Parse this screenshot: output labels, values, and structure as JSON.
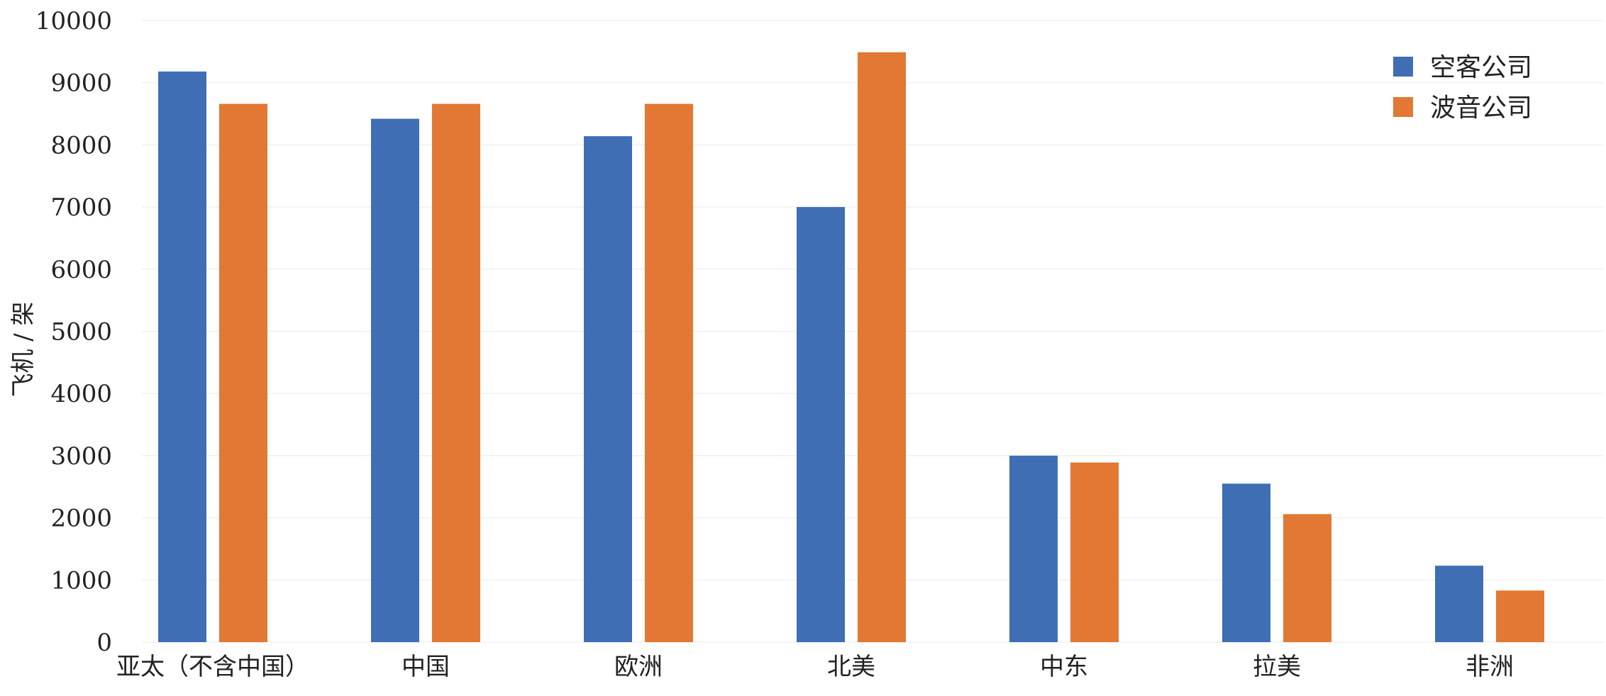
{
  "chart_data": {
    "type": "bar",
    "ylabel": "飞机 / 架",
    "xlabel": "",
    "title": "",
    "ylim": [
      0,
      10000
    ],
    "yticks": [
      0,
      1000,
      2000,
      3000,
      4000,
      5000,
      6000,
      7000,
      8000,
      9000,
      10000
    ],
    "grid": true,
    "legend_position": "top-right",
    "categories": [
      "亚太（不含中国）",
      "中国",
      "欧洲",
      "北美",
      "中东",
      "拉美",
      "非洲"
    ],
    "series": [
      {
        "name": "空客公司",
        "color": "#3f6eb5",
        "values": [
          9180,
          8420,
          8140,
          7000,
          3000,
          2550,
          1230
        ]
      },
      {
        "name": "波音公司",
        "color": "#e27833",
        "values": [
          8660,
          8660,
          8660,
          9490,
          2890,
          2060,
          830
        ]
      }
    ]
  }
}
